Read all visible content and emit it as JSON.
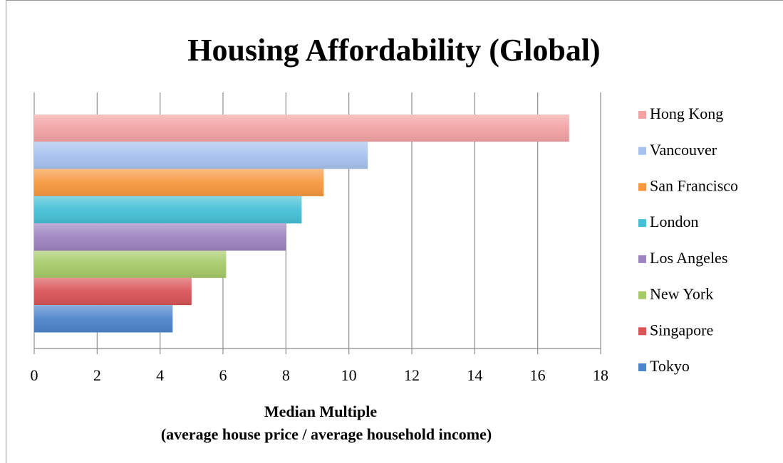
{
  "chart_data": {
    "type": "bar",
    "orientation": "horizontal",
    "title": "Housing Affordability (Global)",
    "x_label": [
      "Median Multiple",
      "(average house price / average household income)"
    ],
    "series": [
      {
        "name": "Hong Kong",
        "color": "#f2a3a3",
        "values": [
          17.0
        ]
      },
      {
        "name": "Vancouver",
        "color": "#a7c2ee",
        "values": [
          10.6
        ]
      },
      {
        "name": "San Francisco",
        "color": "#f7983f",
        "values": [
          9.2
        ]
      },
      {
        "name": "London",
        "color": "#45c0d6",
        "values": [
          8.5
        ]
      },
      {
        "name": "Los Angeles",
        "color": "#9d83bf",
        "values": [
          8.0
        ]
      },
      {
        "name": "New York",
        "color": "#a6ca67",
        "values": [
          6.1
        ]
      },
      {
        "name": "Singapore",
        "color": "#d95457",
        "values": [
          5.0
        ]
      },
      {
        "name": "Tokyo",
        "color": "#4d84cb",
        "values": [
          4.4
        ]
      }
    ],
    "xlim": [
      0,
      18
    ],
    "xticks": [
      0,
      2,
      4,
      6,
      8,
      10,
      12,
      14,
      16,
      18
    ],
    "grid": true,
    "legend": "right"
  }
}
